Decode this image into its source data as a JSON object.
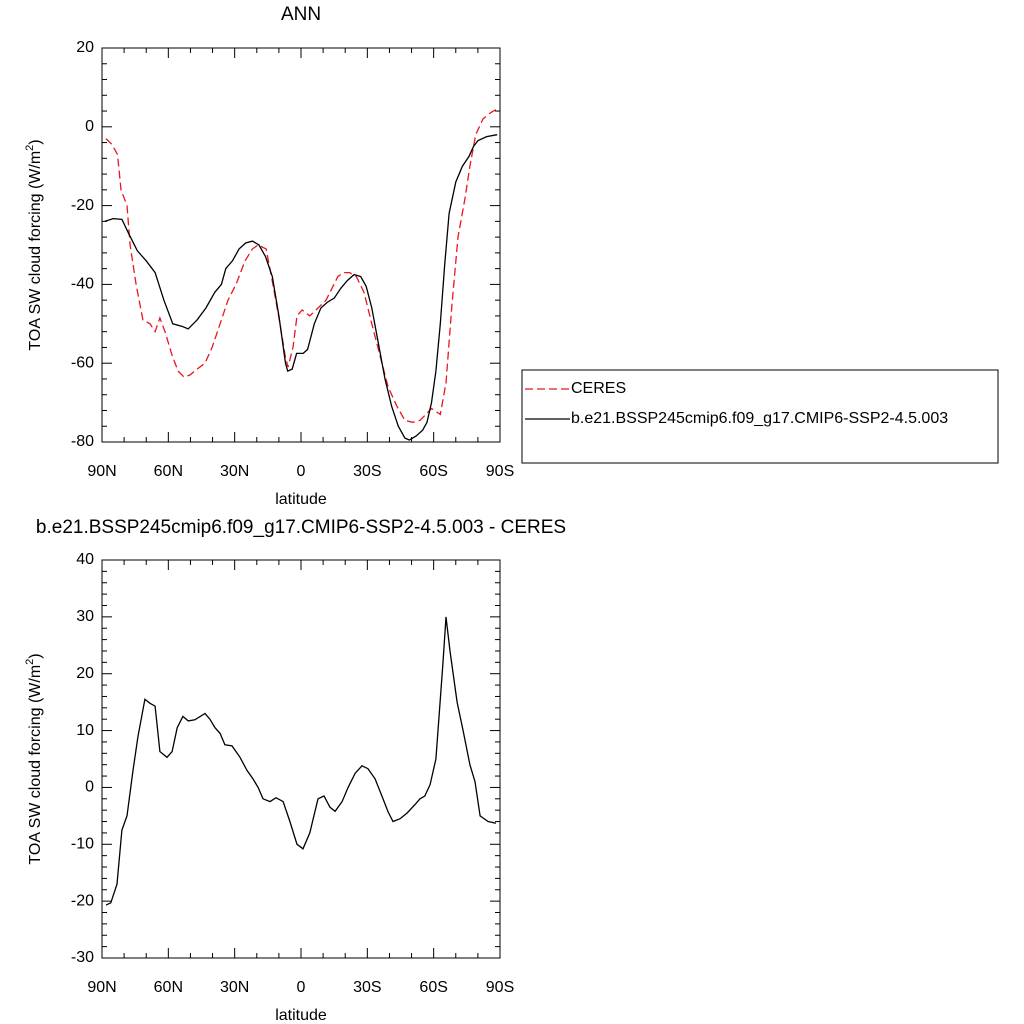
{
  "chart_data": [
    {
      "type": "line",
      "title": "ANN",
      "xlabel": "latitude",
      "ylabel": {
        "text": "TOA SW cloud forcing (W/m",
        "superscript": "2",
        "close": ")"
      },
      "xlim": [
        90,
        -90
      ],
      "xticks": [
        {
          "value": 90,
          "label": "90N"
        },
        {
          "value": 60,
          "label": "60N"
        },
        {
          "value": 30,
          "label": "30N"
        },
        0,
        {
          "value": -30,
          "label": "30S"
        },
        {
          "value": -60,
          "label": "60S"
        },
        {
          "value": -90,
          "label": "90S"
        }
      ],
      "xminorticks": [
        80,
        70,
        50,
        40,
        20,
        10,
        -10,
        -20,
        -40,
        -50,
        -70,
        -80
      ],
      "ylim": [
        -80,
        20
      ],
      "yticks": [
        -80,
        -60,
        -40,
        -20,
        0,
        20
      ],
      "yminorticks": [
        -76,
        -72,
        -68,
        -64,
        -56,
        -52,
        -48,
        -44,
        -36,
        -32,
        -28,
        -24,
        -16,
        -12,
        -8,
        -4,
        4,
        8,
        12,
        16
      ],
      "legend": "right",
      "series": [
        {
          "name": "CERES",
          "color": "#e8161d",
          "dash": true,
          "x": [
            88.2,
            85.5,
            83,
            81.4,
            78.7,
            77.3,
            74.6,
            71.5,
            68.3,
            66,
            63.8,
            61.5,
            58.3,
            55.6,
            52.9,
            50.2,
            47,
            43.4,
            40.2,
            36.6,
            33,
            29.4,
            25.3,
            22,
            19.4,
            15.8,
            12.7,
            9.5,
            7.2,
            5.9,
            3.6,
            1.8,
            -0.5,
            -4,
            -7.7,
            -11.3,
            -14,
            -16.7,
            -19.5,
            -22,
            -25,
            -28.5,
            -32,
            -35.7,
            -39.4,
            -43.4,
            -47,
            -50.6,
            -53.8,
            -56.5,
            -59,
            -63,
            -65.6,
            -68.3,
            -71,
            -74.2,
            -76.4,
            -79,
            -82.3,
            -85.5,
            -88.6
          ],
          "values": [
            -3,
            -4.5,
            -7,
            -16,
            -20,
            -30,
            -40,
            -49,
            -50,
            -52,
            -48.5,
            -52,
            -58,
            -62,
            -63.5,
            -63,
            -61.5,
            -60,
            -56,
            -50,
            -44,
            -40,
            -34,
            -31,
            -30,
            -31,
            -40,
            -50,
            -58,
            -61,
            -56,
            -48,
            -46.5,
            -48,
            -46,
            -44,
            -41,
            -38,
            -37,
            -37,
            -38,
            -42,
            -50,
            -58,
            -66,
            -71,
            -74.5,
            -75,
            -74.5,
            -73,
            -71.5,
            -73,
            -65,
            -45,
            -28,
            -18,
            -10,
            -2,
            2,
            3.5,
            4.5
          ]
        },
        {
          "name": "b.e21.BSSP245cmip6.f09_g17.CMIP6-SSP2-4.5.003",
          "color": "#000000",
          "dash": false,
          "x": [
            88.75,
            85,
            81,
            78,
            74,
            70,
            66,
            62,
            58,
            54,
            51,
            47,
            43,
            39,
            36,
            34,
            31,
            28,
            25,
            22,
            19,
            16,
            13,
            10,
            7,
            6,
            4,
            2,
            -1,
            -3,
            -6,
            -9,
            -12,
            -15,
            -18,
            -21,
            -24,
            -27,
            -29.5,
            -32,
            -35,
            -38,
            -41,
            -44,
            -47,
            -49,
            -52,
            -55,
            -57,
            -59,
            -61,
            -63,
            -65,
            -67,
            -70,
            -73,
            -76,
            -78,
            -80,
            -84,
            -88.75
          ],
          "values": [
            -24,
            -23.3,
            -23.5,
            -27,
            -31.5,
            -34,
            -37,
            -44,
            -50,
            -50.6,
            -51.3,
            -49,
            -46,
            -42,
            -40,
            -36,
            -34,
            -31,
            -29.5,
            -29,
            -30,
            -33,
            -38,
            -48,
            -60,
            -62,
            -61.5,
            -57.5,
            -57.5,
            -56.5,
            -50,
            -46,
            -44.5,
            -43.5,
            -41,
            -39,
            -37.5,
            -38,
            -40.5,
            -46,
            -55,
            -64,
            -71,
            -76,
            -79,
            -79.5,
            -78.5,
            -77,
            -75,
            -70,
            -62,
            -50,
            -35,
            -22,
            -14,
            -10,
            -7.5,
            -5,
            -3.5,
            -2.5,
            -2
          ]
        }
      ]
    },
    {
      "type": "line",
      "title": "b.e21.BSSP245cmip6.f09_g17.CMIP6-SSP2-4.5.003 - CERES",
      "xlabel": "latitude",
      "ylabel": {
        "text": "TOA SW cloud forcing (W/m",
        "superscript": "2",
        "close": ")"
      },
      "xlim": [
        90,
        -90
      ],
      "xticks": [
        {
          "value": 90,
          "label": "90N"
        },
        {
          "value": 60,
          "label": "60N"
        },
        {
          "value": 30,
          "label": "30N"
        },
        0,
        {
          "value": -30,
          "label": "30S"
        },
        {
          "value": -60,
          "label": "60S"
        },
        {
          "value": -90,
          "label": "90S"
        }
      ],
      "xminorticks": [
        80,
        70,
        50,
        40,
        20,
        10,
        -10,
        -20,
        -40,
        -50,
        -70,
        -80
      ],
      "ylim": [
        -30,
        40
      ],
      "yticks": [
        -30,
        -20,
        -10,
        0,
        10,
        20,
        30,
        40
      ],
      "yminorticks": [
        -28,
        -26,
        -24,
        -22,
        -18,
        -16,
        -14,
        -12,
        -8,
        -6,
        -4,
        -2,
        2,
        4,
        6,
        8,
        12,
        14,
        16,
        18,
        22,
        24,
        26,
        28,
        32,
        34,
        36,
        38
      ],
      "series": [
        {
          "color": "#000000",
          "dash": false,
          "x": [
            88.2,
            86,
            83.2,
            81,
            78.7,
            76,
            73.7,
            70.6,
            68.3,
            66,
            63.8,
            60.6,
            58.3,
            56,
            53.4,
            51,
            48,
            43.4,
            41.2,
            38.9,
            36.6,
            34.4,
            31.2,
            27.6,
            24.4,
            21.7,
            19.4,
            17.2,
            14,
            11.3,
            8.1,
            5,
            1.8,
            -0.9,
            -4,
            -7.7,
            -10.4,
            -13.1,
            -15.4,
            -18.6,
            -21.3,
            -24.5,
            -27.6,
            -30.3,
            -33.5,
            -36.6,
            -39.4,
            -41.6,
            -44.8,
            -48,
            -51.6,
            -53.8,
            -56,
            -58.4,
            -61,
            -62.9,
            -64.2,
            -65.6,
            -67.4,
            -70.6,
            -73.3,
            -76.4,
            -78.7,
            -81,
            -84.6,
            -88.2
          ],
          "values": [
            -20.7,
            -20.3,
            -17,
            -7.5,
            -5,
            3,
            9,
            15.5,
            14.8,
            14.3,
            6.3,
            5.3,
            6.3,
            10.5,
            12.5,
            11.7,
            11.9,
            13,
            12,
            10.5,
            9.5,
            7.5,
            7.3,
            5.3,
            3,
            1.5,
            0,
            -2,
            -2.5,
            -1.8,
            -2.5,
            -6,
            -10,
            -10.8,
            -8,
            -2,
            -1.5,
            -3.5,
            -4.2,
            -2.5,
            0,
            2.5,
            3.8,
            3.3,
            1.5,
            -1.5,
            -4.3,
            -6,
            -5.5,
            -4.5,
            -3,
            -2,
            -1.5,
            0.5,
            5,
            15,
            22,
            30,
            24,
            15,
            10,
            4,
            1,
            -5,
            -6,
            -6.3
          ]
        }
      ]
    }
  ]
}
